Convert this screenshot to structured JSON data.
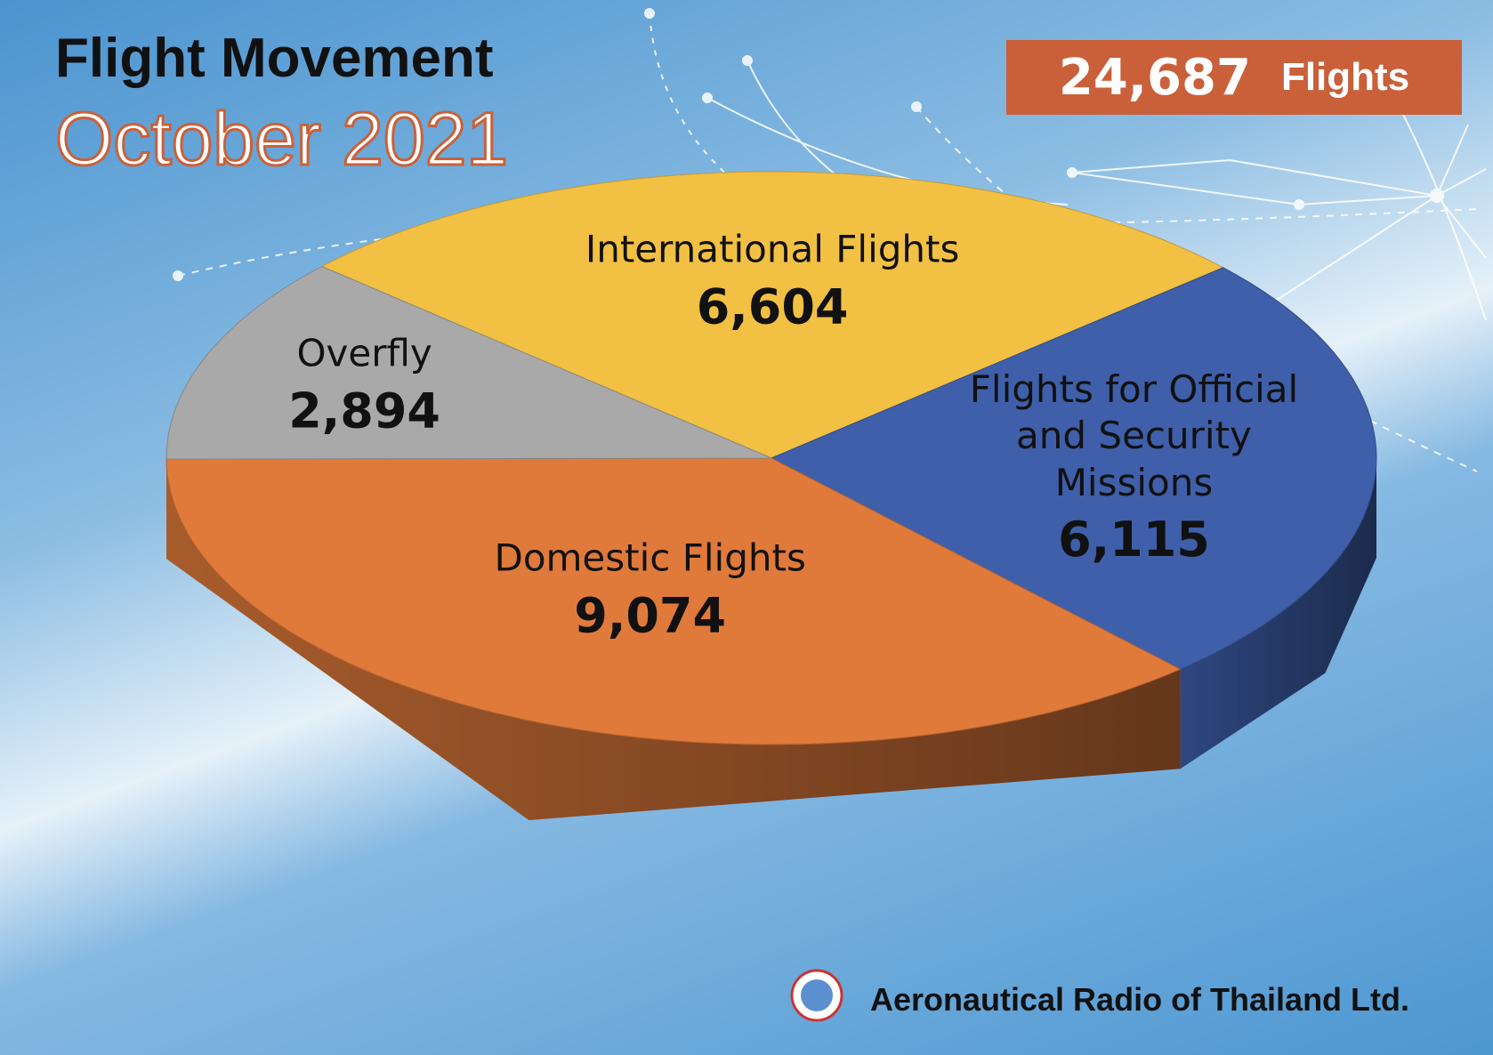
{
  "chart_data": {
    "type": "pie",
    "title": "Flight Movement",
    "subtitle": "October 2021",
    "total": {
      "value": 24687,
      "label": "24,687"
    },
    "total_unit": "Flights",
    "categories": [
      "International Flights",
      "Flights for Official and Security Missions",
      "Domestic Flights",
      "Overfly"
    ],
    "values": [
      6604,
      6115,
      9074,
      2894
    ],
    "value_labels": [
      "6,604",
      "6,115",
      "9,074",
      "2,894"
    ],
    "colors": [
      "#f2c043",
      "#3f5faa",
      "#e07a3b",
      "#a9a9a9"
    ],
    "source": "Aeronautical Radio of Thailand Ltd."
  }
}
